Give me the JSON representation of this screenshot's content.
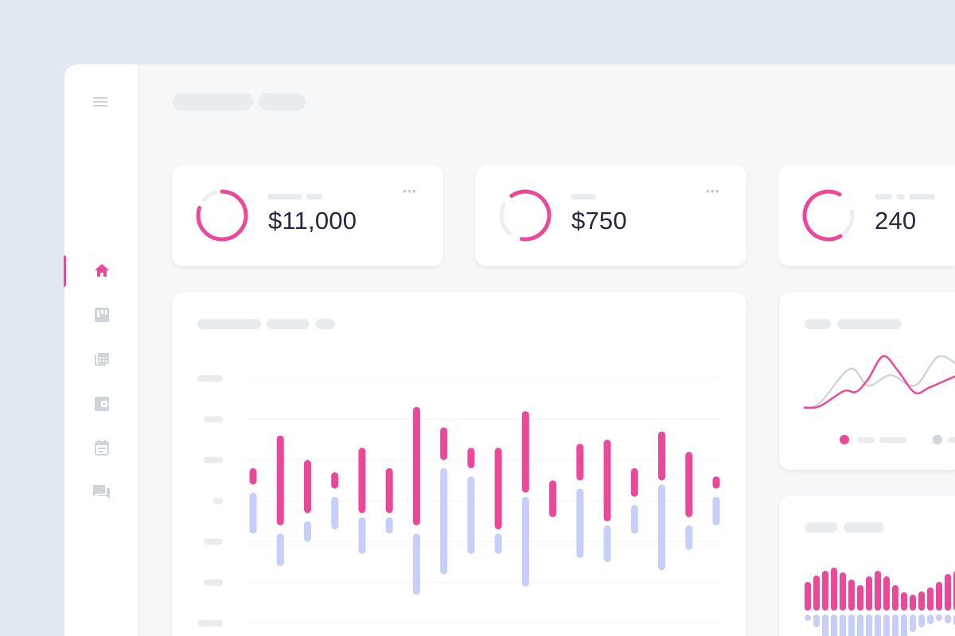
{
  "colors": {
    "accent": "#ec4899",
    "secondary": "#c7cefa",
    "muted": "#ced6dc",
    "placeholder": "#e9ecef",
    "background": "#e2e8f0"
  },
  "sidebar": {
    "items": [
      {
        "icon": "home-icon",
        "active": true
      },
      {
        "icon": "board-icon",
        "active": false
      },
      {
        "icon": "spreadsheet-icon",
        "active": false
      },
      {
        "icon": "wallet-icon",
        "active": false
      },
      {
        "icon": "calendar-icon",
        "active": false
      },
      {
        "icon": "chat-icon",
        "active": false
      }
    ]
  },
  "stats": [
    {
      "value": "$11,000",
      "progress": 0.8
    },
    {
      "value": "$750",
      "progress": 0.62
    },
    {
      "value": "240",
      "progress": 0.66
    }
  ],
  "chart_data": [
    {
      "type": "bar",
      "grid": true,
      "ylim": [
        0,
        60
      ],
      "series": [
        {
          "color": "#ec4899",
          "ranges": [
            [
              34,
              38
            ],
            [
              24,
              46
            ],
            [
              27,
              40
            ],
            [
              33,
              37
            ],
            [
              27,
              43
            ],
            [
              27,
              38
            ],
            [
              24,
              53
            ],
            [
              40,
              48
            ],
            [
              38,
              43
            ],
            [
              23,
              43
            ],
            [
              32,
              52
            ],
            [
              26,
              35
            ],
            [
              35,
              44
            ],
            [
              25,
              45
            ],
            [
              31,
              38
            ],
            [
              35,
              47
            ],
            [
              26,
              42
            ],
            [
              33,
              36
            ]
          ]
        },
        {
          "color": "#c7cefa",
          "ranges": [
            [
              22,
              32
            ],
            [
              14,
              22
            ],
            [
              20,
              25
            ],
            [
              23,
              31
            ],
            [
              17,
              26
            ],
            [
              22,
              26
            ],
            [
              7,
              22
            ],
            [
              12,
              38
            ],
            [
              17,
              36
            ],
            [
              17,
              22
            ],
            [
              9,
              31
            ],
            null,
            [
              16,
              33
            ],
            [
              15,
              24
            ],
            [
              22,
              29
            ],
            [
              13,
              34
            ],
            [
              18,
              24
            ],
            [
              24,
              31
            ]
          ]
        }
      ]
    },
    {
      "type": "line",
      "grid": false,
      "legend": "bottom",
      "series": [
        {
          "color": "#ec4899",
          "points": [
            [
              0,
              4
            ],
            [
              1,
              6
            ],
            [
              2.6,
              25
            ],
            [
              3.4,
              24
            ],
            [
              4.2,
              40
            ],
            [
              5.2,
              69
            ],
            [
              6.2,
              50
            ],
            [
              7.3,
              23
            ],
            [
              8.3,
              30
            ],
            [
              10,
              44
            ]
          ]
        },
        {
          "color": "#ced6dc",
          "points": [
            [
              0,
              5
            ],
            [
              1,
              10
            ],
            [
              3,
              53
            ],
            [
              4.2,
              32
            ],
            [
              5.7,
              45
            ],
            [
              7.3,
              32
            ],
            [
              8.8,
              68
            ],
            [
              10,
              60
            ]
          ]
        }
      ]
    },
    {
      "type": "bar",
      "grid": false,
      "series": [
        {
          "color": "#ec4899",
          "values": [
            36,
            44,
            50,
            54,
            48,
            39,
            32,
            43,
            50,
            43,
            32,
            23,
            20,
            24,
            29,
            36,
            46,
            50
          ]
        },
        {
          "color": "#c7cefa",
          "values": [
            -8,
            -16,
            -30,
            -30,
            -30,
            -30,
            -30,
            -30,
            -30,
            -30,
            -30,
            -30,
            -22,
            -16,
            -12,
            -8,
            -11,
            -14
          ]
        }
      ]
    }
  ]
}
